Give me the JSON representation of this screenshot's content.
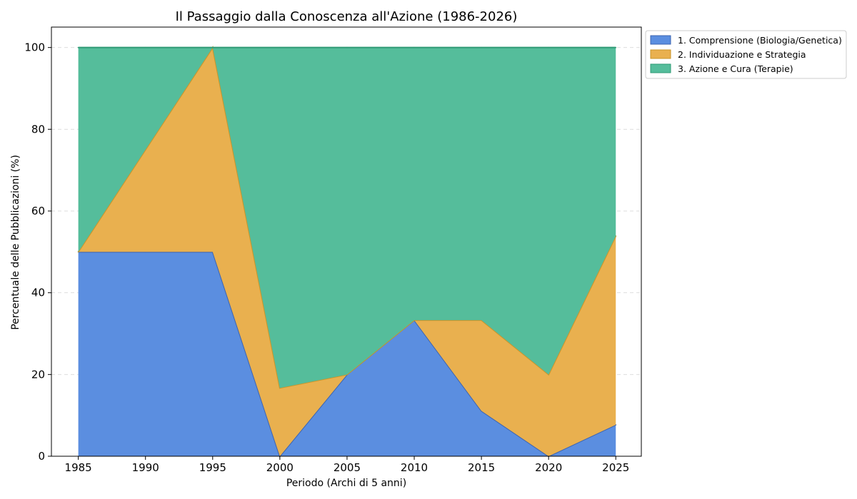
{
  "chart_data": {
    "type": "area",
    "stacked": true,
    "title": "Il Passaggio dalla Conoscenza all'Azione (1986-2026)",
    "xlabel": "Periodo (Archi di 5 anni)",
    "ylabel": "Percentuale delle Pubblicazioni (%)",
    "x": [
      1985,
      1990,
      1995,
      2000,
      2005,
      2010,
      2015,
      2020,
      2025
    ],
    "xlim": [
      1983,
      2026.9
    ],
    "ylim": [
      0,
      105
    ],
    "xticks": [
      1985,
      1990,
      1995,
      2000,
      2005,
      2010,
      2015,
      2020,
      2025
    ],
    "yticks": [
      0,
      20,
      40,
      60,
      80,
      100
    ],
    "grid": "horizontal-dashed",
    "legend_position": "outside-top-right",
    "series": [
      {
        "name": "1. Comprensione (Biologia/Genetica)",
        "values": [
          50,
          50,
          50,
          0,
          20,
          33.3,
          11.1,
          0,
          7.7
        ],
        "fill": "#5b8ee0",
        "edge": "#3d64b0"
      },
      {
        "name": "2. Individuazione e Strategia",
        "values": [
          0,
          25,
          50,
          16.7,
          0,
          0,
          22.2,
          20,
          46.2
        ],
        "fill": "#e9b04f",
        "edge": "#c9952a"
      },
      {
        "name": "3. Azione e Cura (Terapie)",
        "values": [
          50,
          25,
          0,
          83.3,
          80,
          66.7,
          66.7,
          80,
          46.1
        ],
        "fill": "#55bd9b",
        "edge": "#2f9a75"
      }
    ]
  }
}
